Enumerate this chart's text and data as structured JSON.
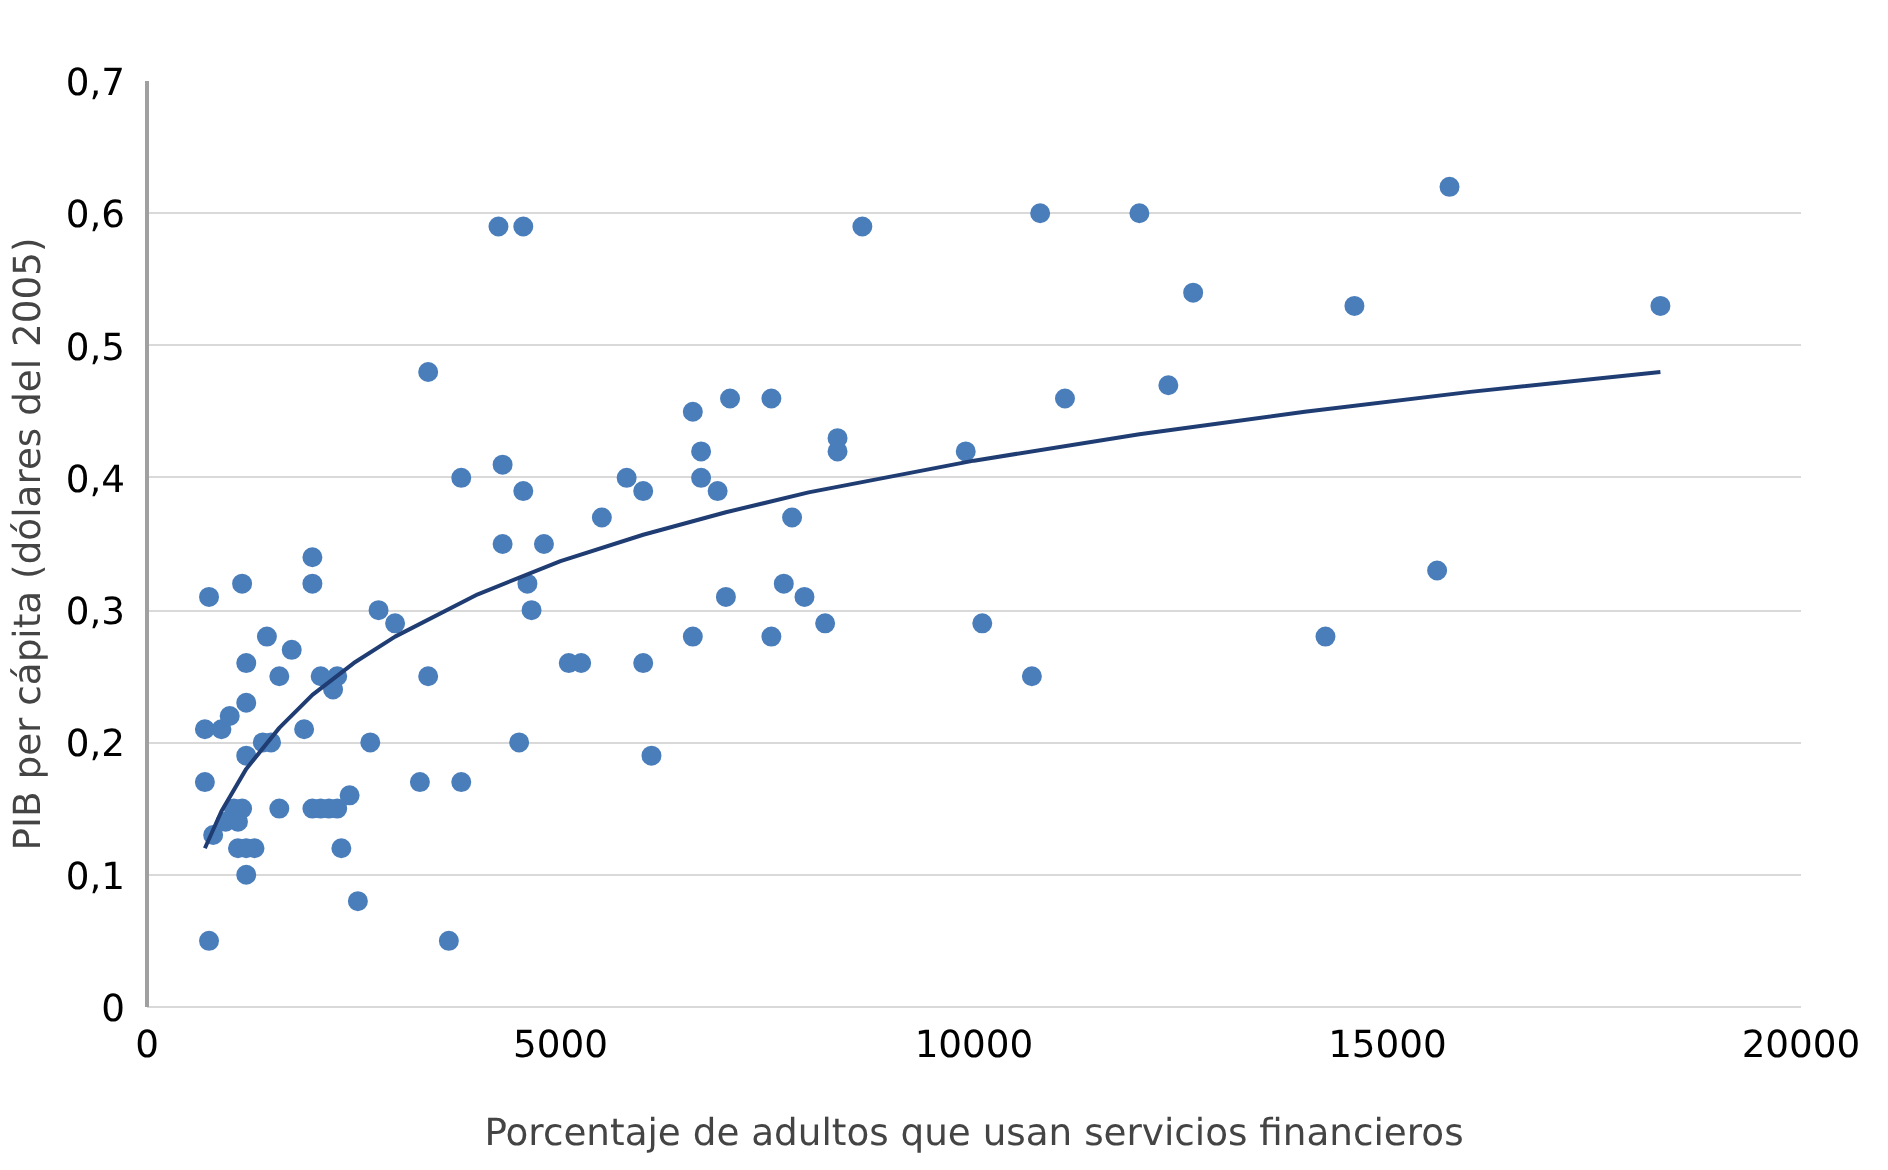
{
  "chart_data": {
    "type": "scatter",
    "xlabel": "Porcentaje de adultos que usan servicios financieros",
    "ylabel": "PIB per cápita (dólares del 2005)",
    "xlim": [
      0,
      20000
    ],
    "ylim": [
      0,
      0.7
    ],
    "xticks": [
      0,
      5000,
      10000,
      15000,
      20000
    ],
    "yticks": [
      {
        "value": 0,
        "label": "0"
      },
      {
        "value": 0.1,
        "label": "0,1"
      },
      {
        "value": 0.2,
        "label": "0,2"
      },
      {
        "value": 0.3,
        "label": "0,3"
      },
      {
        "value": 0.4,
        "label": "0,4"
      },
      {
        "value": 0.5,
        "label": "0,5"
      },
      {
        "value": 0.6,
        "label": "0,6"
      },
      {
        "value": 0.7,
        "label": "0,7"
      }
    ],
    "grid": "y",
    "marker": "circle",
    "series": [
      {
        "color": "#4a7ebb",
        "x": [
          700,
          700,
          750,
          750,
          800,
          900,
          950,
          1000,
          1050,
          1100,
          1100,
          1150,
          1150,
          1200,
          1200,
          1200,
          1200,
          1200,
          1300,
          1400,
          1450,
          1500,
          1600,
          1600,
          1750,
          1900,
          2000,
          2000,
          2000,
          2100,
          2100,
          2200,
          2250,
          2300,
          2300,
          2350,
          2450,
          2550,
          2700,
          2800,
          3000,
          3300,
          3400,
          3400,
          3650,
          3800,
          3800,
          4250,
          4300,
          4300,
          4500,
          4550,
          4550,
          4600,
          4650,
          4800,
          5100,
          5250,
          5500,
          5800,
          6000,
          6000,
          6100,
          6600,
          6600,
          6700,
          6700,
          6900,
          7000,
          7050,
          7550,
          7550,
          7700,
          7800,
          7950,
          8200,
          8350,
          8350,
          8650,
          9900,
          10100,
          10700,
          10800,
          11100,
          12000,
          12350,
          12650,
          14250,
          14600,
          15600,
          15750,
          18300
        ],
        "values": [
          0.21,
          0.17,
          0.31,
          0.05,
          0.13,
          0.21,
          0.14,
          0.22,
          0.15,
          0.14,
          0.12,
          0.15,
          0.32,
          0.26,
          0.23,
          0.19,
          0.12,
          0.1,
          0.12,
          0.2,
          0.28,
          0.2,
          0.25,
          0.15,
          0.27,
          0.21,
          0.34,
          0.32,
          0.15,
          0.25,
          0.15,
          0.15,
          0.24,
          0.25,
          0.15,
          0.12,
          0.16,
          0.08,
          0.2,
          0.3,
          0.29,
          0.17,
          0.48,
          0.25,
          0.05,
          0.17,
          0.4,
          0.59,
          0.41,
          0.35,
          0.2,
          0.39,
          0.59,
          0.32,
          0.3,
          0.35,
          0.26,
          0.26,
          0.37,
          0.4,
          0.26,
          0.39,
          0.19,
          0.45,
          0.28,
          0.42,
          0.4,
          0.39,
          0.31,
          0.46,
          0.46,
          0.28,
          0.32,
          0.37,
          0.31,
          0.29,
          0.42,
          0.43,
          0.59,
          0.42,
          0.29,
          0.25,
          0.6,
          0.46,
          0.6,
          0.47,
          0.54,
          0.28,
          0.53,
          0.33,
          0.62,
          0.53
        ]
      },
      {
        "type": "line",
        "color": "#1f3d73",
        "marker": "none",
        "x": [
          700,
          900,
          1200,
          1600,
          2000,
          2500,
          3000,
          4000,
          5000,
          6000,
          7000,
          8000,
          10000,
          12000,
          14000,
          16000,
          18300
        ],
        "values": [
          0.12,
          0.148,
          0.18,
          0.211,
          0.236,
          0.26,
          0.28,
          0.312,
          0.337,
          0.357,
          0.374,
          0.389,
          0.413,
          0.433,
          0.45,
          0.465,
          0.48
        ]
      }
    ]
  }
}
